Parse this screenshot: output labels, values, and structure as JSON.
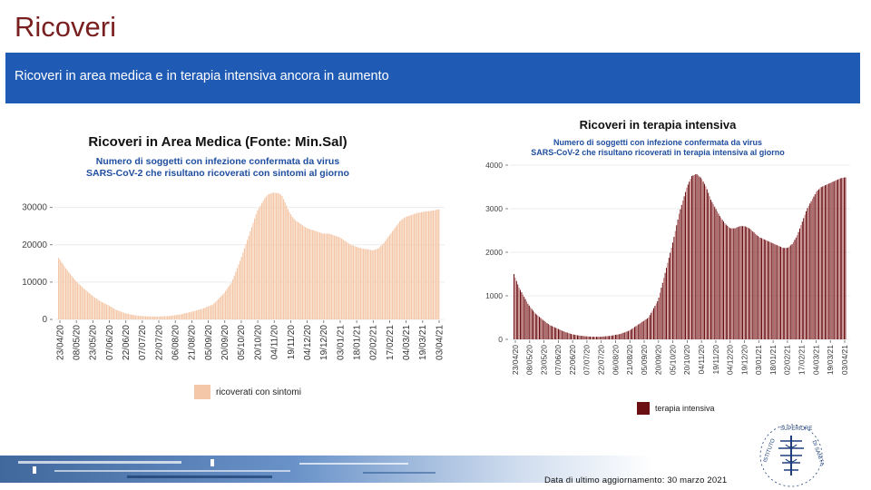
{
  "slide": {
    "title": "Ricoveri",
    "banner": "Ricoveri in area medica e in terapia intensiva ancora in aumento",
    "footer": "Data di ultimo aggiornamento: 30 marzo 2021"
  },
  "chart_data": [
    {
      "type": "bar",
      "title": "Ricoveri in Area Medica (Fonte: Min.Sal)",
      "subtitle_lines": [
        "Numero di soggetti con infezione confermata da virus",
        "SARS-CoV-2 che risultano ricoverati con sintomi al giorno"
      ],
      "legend": "ricoverati con sintomi",
      "color": "#f4c7a8",
      "ylim": [
        0,
        36000
      ],
      "yticks": [
        0,
        10000,
        20000,
        30000
      ],
      "ytick_labels": [
        "0",
        "10000",
        "20000",
        "30000"
      ],
      "xtick_labels": [
        "23/04/20",
        "08/05/20",
        "23/05/20",
        "07/06/20",
        "22/06/20",
        "07/07/20",
        "22/07/20",
        "06/08/20",
        "21/08/20",
        "05/09/20",
        "20/09/20",
        "05/10/20",
        "20/10/20",
        "04/11/20",
        "19/11/20",
        "04/12/20",
        "19/12/20",
        "03/01/21",
        "18/01/21",
        "02/02/21",
        "17/02/21",
        "04/03/21",
        "19/03/21",
        "03/04/21"
      ],
      "series": [
        {
          "name": "ricoverati con sintomi",
          "x_days": [
            0,
            7,
            15,
            22,
            30,
            37,
            45,
            52,
            60,
            67,
            75,
            82,
            90,
            100,
            110,
            120,
            130,
            140,
            150,
            157,
            165,
            172,
            180,
            187,
            190,
            195,
            200,
            203,
            206,
            209,
            212,
            215,
            220,
            225,
            230,
            235,
            240,
            245,
            250,
            255,
            260,
            265,
            270,
            275,
            280,
            285,
            290,
            295,
            300,
            305,
            310,
            315,
            320,
            325,
            330,
            335,
            340,
            345
          ],
          "values": [
            16500,
            13500,
            10500,
            8500,
            6500,
            5000,
            3800,
            2600,
            1700,
            1200,
            900,
            800,
            750,
            900,
            1300,
            2000,
            2800,
            4000,
            7000,
            10000,
            16000,
            22000,
            29000,
            32500,
            33500,
            34000,
            33800,
            33000,
            31000,
            29000,
            27500,
            26500,
            25500,
            24500,
            24000,
            23500,
            23000,
            23000,
            22500,
            22000,
            21000,
            20000,
            19500,
            19000,
            18800,
            18500,
            19000,
            20500,
            22500,
            24500,
            26500,
            27500,
            28000,
            28500,
            28800,
            29000,
            29200,
            29500
          ]
        }
      ]
    },
    {
      "type": "bar",
      "title": "Ricoveri in terapia intensiva",
      "subtitle_lines": [
        "Numero di soggetti con infezione confermata da virus",
        "SARS-CoV-2 che risultano ricoverati in terapia intensiva al giorno"
      ],
      "legend": "terapia intensiva",
      "color": "#6b0f12",
      "ylim": [
        0,
        4000
      ],
      "yticks": [
        0,
        1000,
        2000,
        3000,
        4000
      ],
      "ytick_labels": [
        "0",
        "1000",
        "2000",
        "3000",
        "4000"
      ],
      "xtick_labels": [
        "23/04/20",
        "08/05/20",
        "23/05/20",
        "07/06/20",
        "22/06/20",
        "07/07/20",
        "22/07/20",
        "06/08/20",
        "21/08/20",
        "05/09/20",
        "20/09/20",
        "05/10/20",
        "20/10/20",
        "04/11/20",
        "19/11/20",
        "04/12/20",
        "19/12/20",
        "03/01/21",
        "18/01/21",
        "02/02/21",
        "17/02/21",
        "04/03/21",
        "19/03/21",
        "03/04/21"
      ],
      "series": [
        {
          "name": "terapia intensiva",
          "x_days": [
            0,
            5,
            10,
            15,
            22,
            30,
            37,
            45,
            52,
            60,
            67,
            75,
            82,
            90,
            100,
            110,
            120,
            130,
            140,
            150,
            157,
            165,
            172,
            180,
            185,
            190,
            195,
            200,
            205,
            210,
            215,
            220,
            225,
            230,
            235,
            240,
            245,
            250,
            255,
            260,
            265,
            270,
            275,
            280,
            285,
            290,
            295,
            300,
            305,
            310,
            315,
            320,
            325,
            330,
            335,
            340,
            345
          ],
          "values": [
            1500,
            1200,
            1000,
            800,
            600,
            450,
            330,
            250,
            180,
            120,
            90,
            70,
            60,
            60,
            80,
            120,
            200,
            350,
            500,
            900,
            1500,
            2200,
            2900,
            3500,
            3750,
            3800,
            3700,
            3500,
            3200,
            3000,
            2800,
            2650,
            2550,
            2550,
            2600,
            2600,
            2550,
            2450,
            2350,
            2300,
            2250,
            2200,
            2150,
            2100,
            2100,
            2200,
            2400,
            2700,
            3000,
            3200,
            3400,
            3500,
            3550,
            3600,
            3650,
            3700,
            3720
          ]
        }
      ]
    }
  ]
}
